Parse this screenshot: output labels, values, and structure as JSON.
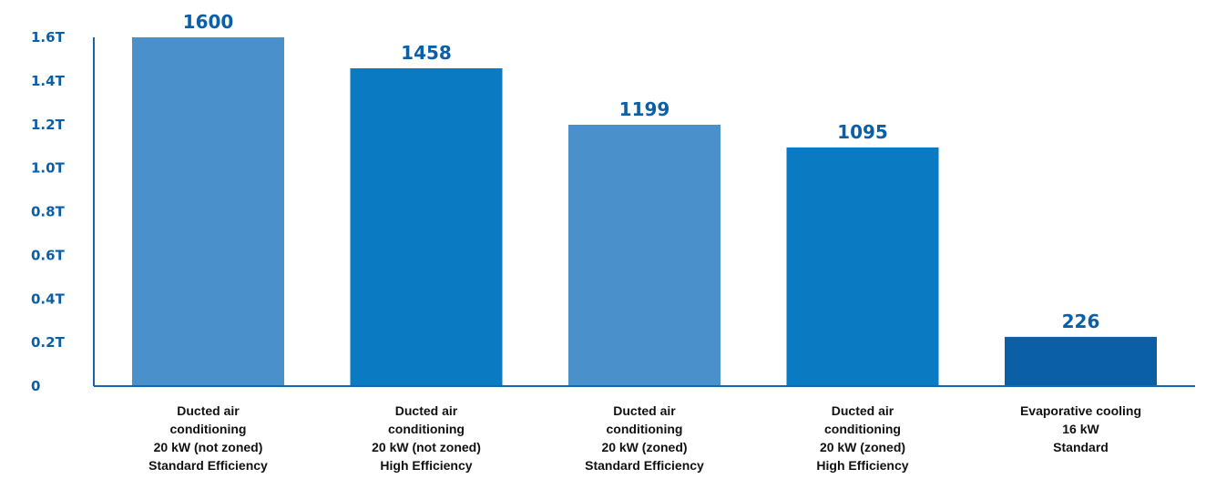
{
  "chart_data": {
    "type": "bar",
    "categories": [
      [
        "Ducted air",
        "conditioning",
        "20 kW (not zoned)",
        "Standard Efficiency"
      ],
      [
        "Ducted air",
        "conditioning",
        "20 kW (not zoned)",
        "High Efficiency"
      ],
      [
        "Ducted air",
        "conditioning",
        "20 kW (zoned)",
        "Standard Efficiency"
      ],
      [
        "Ducted air",
        "conditioning",
        "20 kW (zoned)",
        "High Efficiency"
      ],
      [
        "Evaporative cooling",
        "16 kW",
        "Standard"
      ]
    ],
    "values": [
      1600,
      1458,
      1199,
      1095,
      226
    ],
    "data_labels": [
      "1600",
      "1458",
      "1199",
      "1095",
      "226"
    ],
    "bar_colors": [
      "#4a90cb",
      "#0a7bc3",
      "#4a90cb",
      "#0a7bc3",
      "#0b5fa6"
    ],
    "y_ticks": [
      {
        "value": 0,
        "label": "0"
      },
      {
        "value": 200,
        "label": "0.2T"
      },
      {
        "value": 400,
        "label": "0.4T"
      },
      {
        "value": 600,
        "label": "0.6T"
      },
      {
        "value": 800,
        "label": "0.8T"
      },
      {
        "value": 1000,
        "label": "1.0T"
      },
      {
        "value": 1200,
        "label": "1.2T"
      },
      {
        "value": 1400,
        "label": "1.4T"
      },
      {
        "value": 1600,
        "label": "1.6T"
      }
    ],
    "ylim": [
      0,
      1600
    ],
    "grid": false,
    "title": "",
    "xlabel": "",
    "ylabel": "",
    "colors": {
      "axis": "#1565b0",
      "tick_label": "#0b5fa6",
      "value_label": "#0b5fa6",
      "category_label": "#111111"
    }
  }
}
